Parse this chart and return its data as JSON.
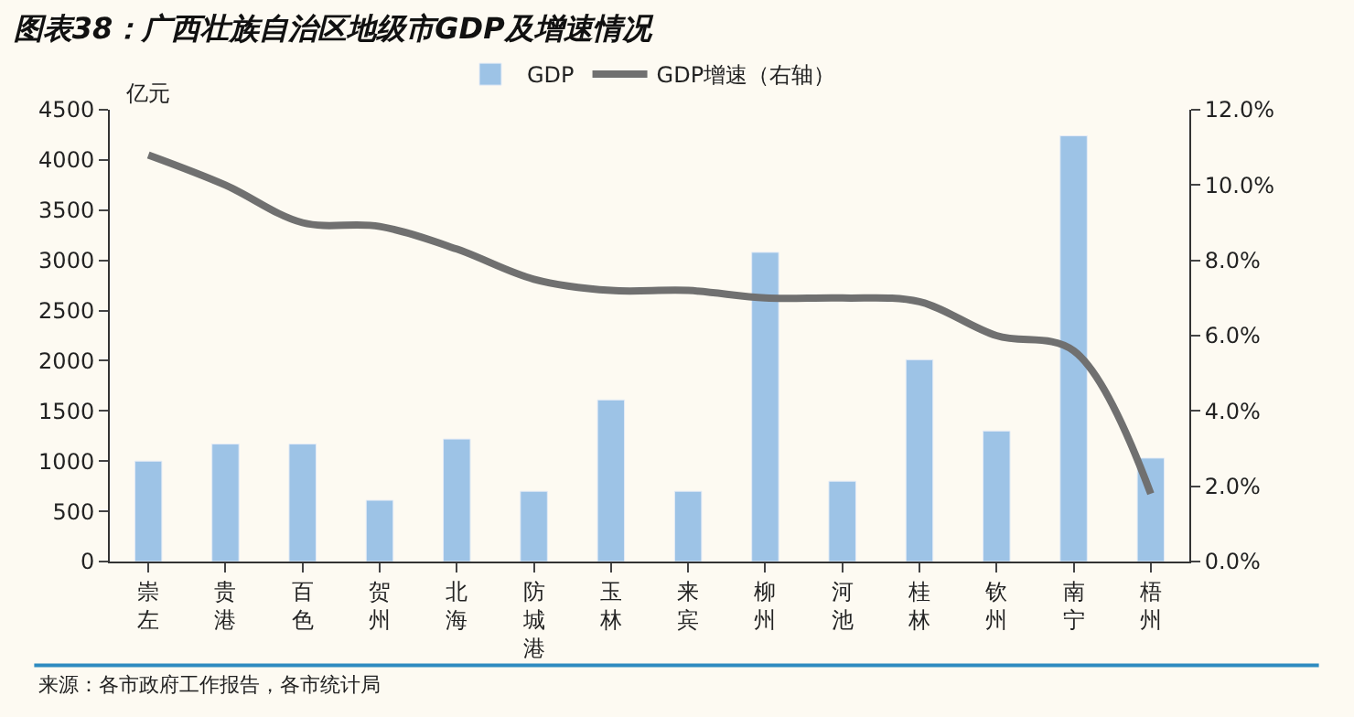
{
  "chart_data": {
    "type": "bar",
    "title": "图表38：广西壮族自治区地级市GDP及增速情况",
    "ylabel": "亿元",
    "categories": [
      "崇左",
      "贵港",
      "百色",
      "贺州",
      "北海",
      "防城港",
      "玉林",
      "来宾",
      "柳州",
      "河池",
      "桂林",
      "钦州",
      "南宁",
      "梧州"
    ],
    "series": [
      {
        "name": "GDP",
        "color": "#9dc3e6",
        "values": [
          1000,
          1170,
          1170,
          610,
          1220,
          700,
          1610,
          700,
          3080,
          800,
          2010,
          1300,
          4240,
          1030
        ]
      },
      {
        "name": "GDP增速（右轴）",
        "type": "line",
        "axis": "y2",
        "color": "#707070",
        "values": [
          10.8,
          10.0,
          9.0,
          8.9,
          8.3,
          7.5,
          7.2,
          7.2,
          7.0,
          7.0,
          6.9,
          6.0,
          5.6,
          1.8
        ]
      }
    ],
    "ylim": [
      0,
      4500
    ],
    "yticks": [
      0,
      500,
      1000,
      1500,
      2000,
      2500,
      3000,
      3500,
      4000,
      4500
    ],
    "y2lim": [
      0,
      12
    ],
    "y2ticks": [
      {
        "value": 0,
        "label": "0.0%"
      },
      {
        "value": 2,
        "label": "2.0%"
      },
      {
        "value": 4,
        "label": "4.0%"
      },
      {
        "value": 6,
        "label": "6.0%"
      },
      {
        "value": 8,
        "label": "8.0%"
      },
      {
        "value": 10,
        "label": "10.0%"
      },
      {
        "value": 12,
        "label": "12.0%"
      }
    ],
    "legend": "top",
    "grid": false,
    "marker": "none",
    "annotations": [
      "来源：各市政府工作报告，各市统计局"
    ]
  }
}
